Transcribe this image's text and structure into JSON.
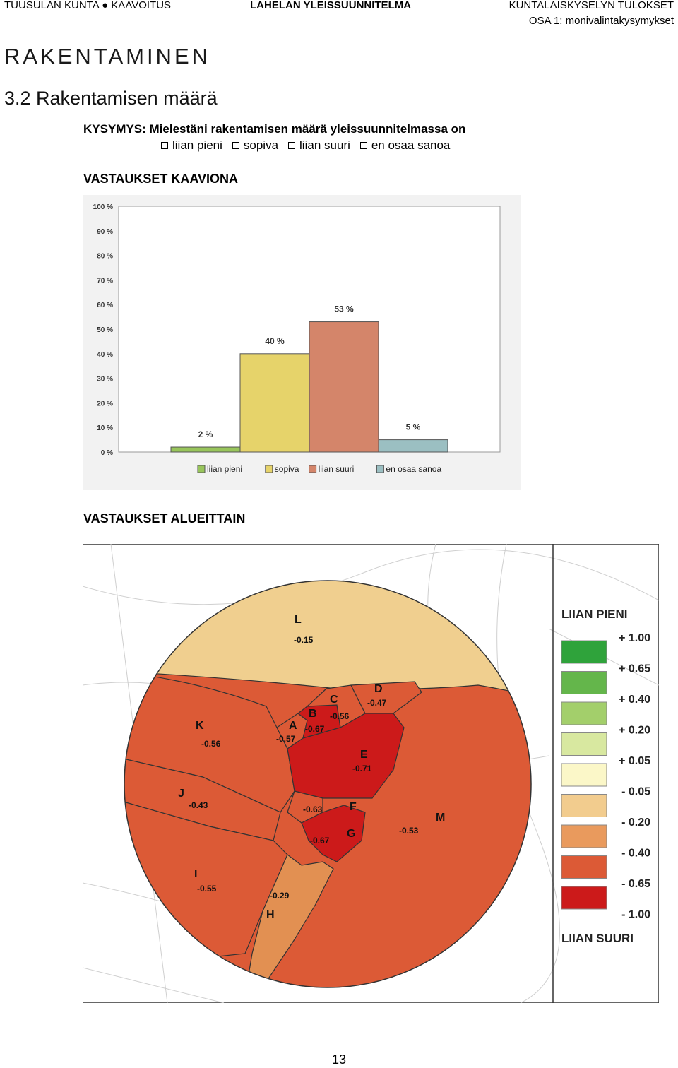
{
  "header": {
    "left": "TUUSULAN KUNTA ● KAAVOITUS",
    "center": "LAHELAN YLEISSUUNNITELMA",
    "right": "KUNTALAISKYSELYN TULOKSET",
    "right_sub": "OSA 1: monivalintakysymykset"
  },
  "section_title": "RAKENTAMINEN",
  "subsection_title": "3.2  Rakentamisen määrä",
  "question": {
    "prefix": "KYSYMYS:",
    "text": "Mielestäni rakentamisen määrä yleissuunnitelmassa on",
    "options": [
      "liian pieni",
      "sopiva",
      "liian suuri",
      "en osaa sanoa"
    ]
  },
  "chart_heading": "VASTAUKSET KAAVIONA",
  "map_heading": "VASTAUKSET ALUEITTAIN",
  "chart_data": {
    "type": "bar",
    "categories": [
      "liian pieni",
      "sopiva",
      "liian suuri",
      "en osaa sanoa"
    ],
    "values": [
      2,
      40,
      53,
      5
    ],
    "data_labels": [
      "2 %",
      "40 %",
      "53 %",
      "5 %"
    ],
    "colors": [
      "#98c55b",
      "#e6d36a",
      "#d4856a",
      "#9bbfc2"
    ],
    "ylim": [
      0,
      100
    ],
    "yticks": [
      "0 %",
      "10 %",
      "20 %",
      "30 %",
      "40 %",
      "50 %",
      "60 %",
      "70 %",
      "80 %",
      "90 %",
      "100 %"
    ],
    "legend_position": "bottom",
    "title": "",
    "xlabel": "",
    "ylabel": ""
  },
  "map": {
    "regions": [
      {
        "id": "L",
        "value": "-0.15",
        "color": "#f0cf8f"
      },
      {
        "id": "K",
        "value": "-0.56",
        "color": "#dc5a36"
      },
      {
        "id": "J",
        "value": "-0.43",
        "color": "#dc5a36"
      },
      {
        "id": "I",
        "value": "-0.55",
        "color": "#dc5a36"
      },
      {
        "id": "H",
        "value": "-0.29",
        "color": "#e29052"
      },
      {
        "id": "A",
        "value": "-0.57",
        "color": "#dc5a36"
      },
      {
        "id": "B",
        "value": "-0.67",
        "color": "#cc1a1a"
      },
      {
        "id": "C",
        "value": "-0.56",
        "color": "#dc5a36"
      },
      {
        "id": "D",
        "value": "-0.47",
        "color": "#dc5a36"
      },
      {
        "id": "E",
        "value": "-0.71",
        "color": "#cc1a1a"
      },
      {
        "id": "F",
        "value": "-0.63",
        "color": "#dc5a36"
      },
      {
        "id": "G",
        "value": "-0.67",
        "color": "#cc1a1a"
      },
      {
        "id": "M",
        "value": "-0.53",
        "color": "#dc5a36"
      }
    ],
    "legend": {
      "top_label": "LIIAN PIENI",
      "bottom_label": "LIIAN SUURI",
      "scale_labels": [
        "+ 1.00",
        "+ 0.65",
        "+ 0.40",
        "+ 0.20",
        "+ 0.05",
        "- 0.05",
        "- 0.20",
        "- 0.40",
        "- 0.65",
        "- 1.00"
      ],
      "swatch_colors": [
        "#2fa33b",
        "#64b64b",
        "#a3cf6b",
        "#d8e8a0",
        "#fbf7c8",
        "#f2cc8e",
        "#e99a5d",
        "#dc5a36",
        "#cc1a1a"
      ]
    }
  },
  "page_number": "13"
}
